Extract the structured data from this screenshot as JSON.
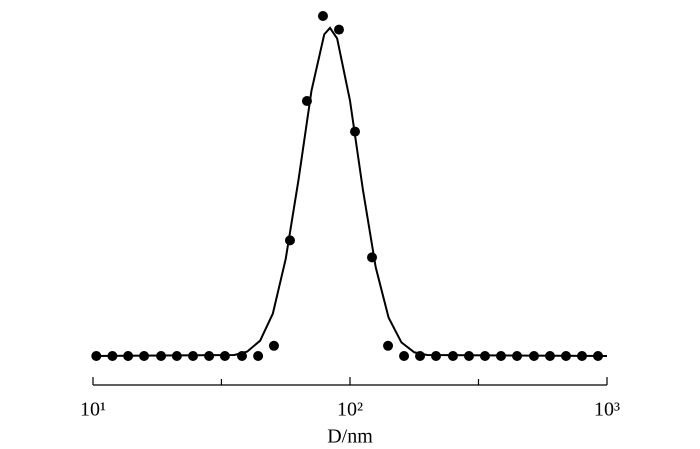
{
  "chart_data": {
    "type": "scatter",
    "x_label": "D/nm",
    "x_log": true,
    "xlim": [
      10,
      1000
    ],
    "xticks": [
      {
        "value": 10,
        "label": "10¹"
      },
      {
        "value": 100,
        "label": "10²"
      },
      {
        "value": 1000,
        "label": "10³"
      }
    ],
    "x_minor_ticks": [
      31.6,
      316.2
    ],
    "ylim": [
      0,
      1
    ],
    "series": [
      {
        "mode": "markers",
        "color": "#000000",
        "x": [
          10.3,
          11.9,
          13.7,
          15.8,
          18.4,
          21.2,
          24.5,
          28.3,
          32.6,
          38.0,
          43.9,
          50.6,
          58.4,
          68.0,
          78.5,
          90.6,
          104.6,
          121.8,
          140.6,
          162.3,
          187.3,
          216.1,
          251.6,
          290.4,
          335.2,
          386.9,
          446.6,
          520.0,
          600.1,
          692.6,
          799.4,
          922.6
        ],
        "values": [
          0,
          0,
          0,
          0,
          0,
          0,
          0,
          0,
          0,
          0,
          0,
          0.03,
          0.34,
          0.75,
          1.0,
          0.96,
          0.66,
          0.29,
          0.03,
          0,
          0,
          0,
          0,
          0,
          0,
          0,
          0,
          0,
          0,
          0,
          0,
          0
        ]
      },
      {
        "mode": "line",
        "color": "#000000",
        "x": [
          10,
          35.5,
          39.8,
          44.7,
          50.1,
          56.2,
          63.1,
          70.8,
          79.4,
          83.6,
          89.1,
          100,
          112.2,
          125.9,
          141.3,
          158.5,
          177.8,
          199.5,
          1000
        ],
        "values": [
          0,
          0.003,
          0.013,
          0.045,
          0.125,
          0.285,
          0.52,
          0.78,
          0.946,
          0.965,
          0.934,
          0.751,
          0.49,
          0.261,
          0.113,
          0.04,
          0.011,
          0.003,
          0
        ]
      }
    ]
  }
}
